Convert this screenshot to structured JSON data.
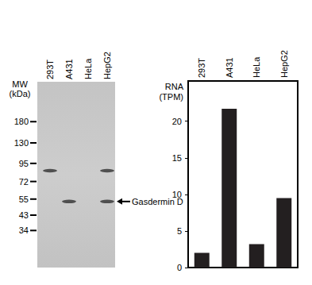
{
  "blot": {
    "mw_label": "MW\n(kDa)",
    "lanes": [
      "293T",
      "A431",
      "HeLa",
      "HepG2"
    ],
    "markers": [
      180,
      130,
      95,
      72,
      55,
      43,
      34
    ],
    "bands": [
      {
        "lane": "293T",
        "kDa": 85
      },
      {
        "lane": "A431",
        "kDa": 53
      },
      {
        "lane": "HepG2",
        "kDa": 53
      },
      {
        "lane": "HepG2",
        "kDa": 85
      }
    ],
    "band_label": "Gasdermin D"
  },
  "chart_data": {
    "type": "bar",
    "categories": [
      "293T",
      "A431",
      "HeLa",
      "HepG2"
    ],
    "values": [
      2,
      21.7,
      3.2,
      9.5
    ],
    "color": "#231f20",
    "ylabel": "RNA\n(TPM)",
    "ylim": [
      0,
      25.5
    ],
    "yticks": [
      0,
      5,
      10,
      15,
      20
    ],
    "grid": false
  }
}
